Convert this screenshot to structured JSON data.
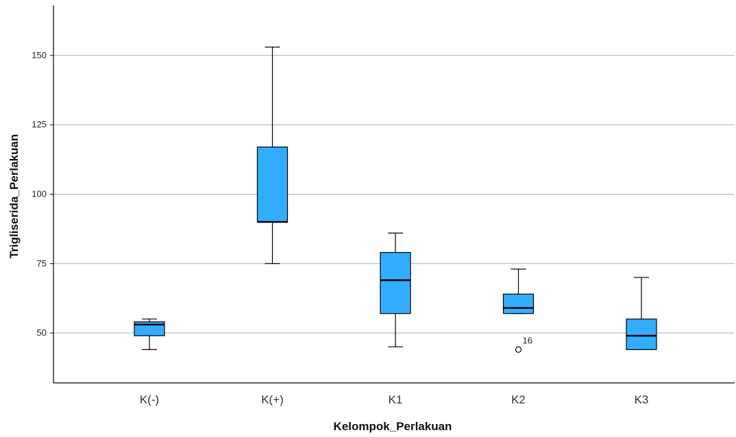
{
  "chart_data": {
    "type": "boxplot",
    "xlabel": "Kelompok_Perlakuan",
    "ylabel": "Trigliserida_Perlakuan",
    "ylim": [
      32,
      168
    ],
    "yticks": [
      50,
      75,
      100,
      125,
      150
    ],
    "grid": true,
    "box_color": "#33adff",
    "categories": [
      "K(-)",
      "K(+)",
      "K1",
      "K2",
      "K3"
    ],
    "boxes": [
      {
        "category": "K(-)",
        "min": 44,
        "q1": 49,
        "median": 53,
        "q3": 54,
        "max": 55,
        "outliers": []
      },
      {
        "category": "K(+)",
        "min": 75,
        "q1": 90,
        "median": 90,
        "q3": 117,
        "max": 153,
        "outliers": []
      },
      {
        "category": "K1",
        "min": 45,
        "q1": 57,
        "median": 69,
        "q3": 79,
        "max": 86,
        "outliers": []
      },
      {
        "category": "K2",
        "min": 57,
        "q1": 57,
        "median": 59,
        "q3": 64,
        "max": 73,
        "outliers": [
          {
            "value": 44,
            "label": "16"
          }
        ]
      },
      {
        "category": "K3",
        "min": 44,
        "q1": 44,
        "median": 49,
        "q3": 55,
        "max": 70,
        "outliers": []
      }
    ]
  }
}
